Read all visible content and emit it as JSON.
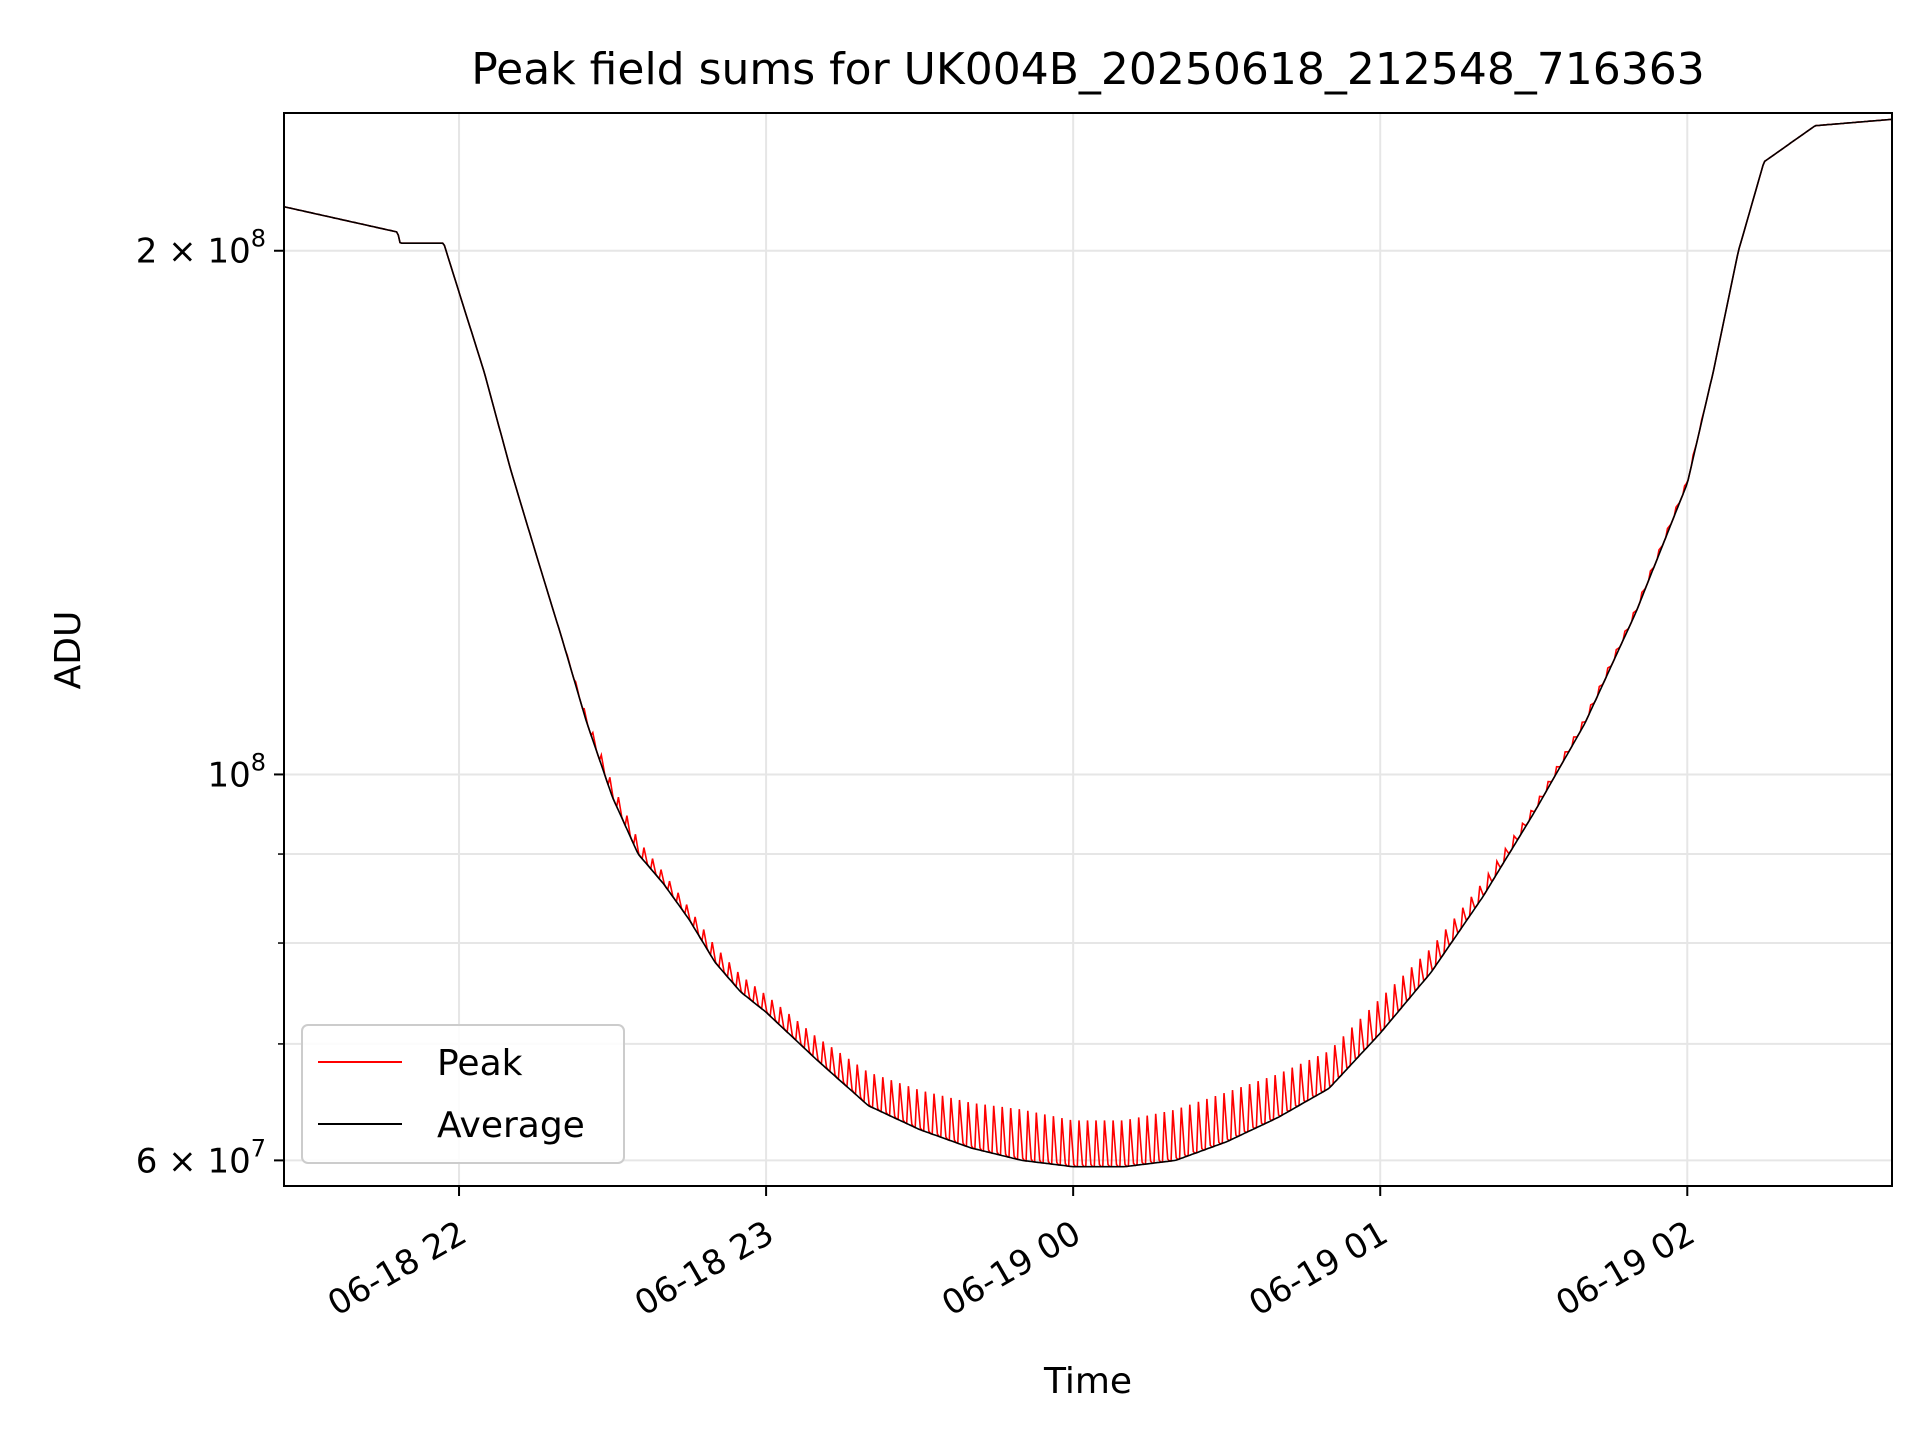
{
  "chart_data": {
    "type": "line",
    "title": "Peak field sums for UK004B_20250618_212548_716363",
    "xlabel": "Time",
    "ylabel": "ADU",
    "xscale": "time",
    "yscale": "log",
    "xlim": [
      "2025-06-18 21:25:48",
      "2025-06-19 02:40:00"
    ],
    "ylim": [
      58000000,
      240000000
    ],
    "x_ticks": [
      {
        "value": "2025-06-18 22:00",
        "label": "06-18 22"
      },
      {
        "value": "2025-06-18 23:00",
        "label": "06-18 23"
      },
      {
        "value": "2025-06-19 00:00",
        "label": "06-19 00"
      },
      {
        "value": "2025-06-19 01:00",
        "label": "06-19 01"
      },
      {
        "value": "2025-06-19 02:00",
        "label": "06-19 02"
      }
    ],
    "y_ticks": [
      {
        "value": 60000000,
        "base": "6 × 10",
        "exp": "7"
      },
      {
        "value": 100000000,
        "base": "10",
        "exp": "8"
      },
      {
        "value": 200000000,
        "base": "2 × 10",
        "exp": "8"
      }
    ],
    "y_minor_ticks": [
      70000000,
      80000000,
      90000000
    ],
    "grid": true,
    "legend": "lower-left",
    "series": [
      {
        "name": "Peak",
        "color": "#ff0000",
        "x": [
          "2025-06-18 21:25:48",
          "2025-06-18 21:48:00",
          "2025-06-18 21:48:30",
          "2025-06-18 21:57:00",
          "2025-06-18 22:05:00",
          "2025-06-18 22:10:00",
          "2025-06-18 22:15:00",
          "2025-06-18 22:20:00",
          "2025-06-18 22:25:00",
          "2025-06-18 22:30:00",
          "2025-06-18 22:35:00",
          "2025-06-18 22:40:00",
          "2025-06-18 22:45:00",
          "2025-06-18 22:50:00",
          "2025-06-18 22:55:00",
          "2025-06-18 23:00:00",
          "2025-06-18 23:10:00",
          "2025-06-18 23:20:00",
          "2025-06-18 23:30:00",
          "2025-06-18 23:40:00",
          "2025-06-18 23:50:00",
          "2025-06-19 00:00:00",
          "2025-06-19 00:10:00",
          "2025-06-19 00:20:00",
          "2025-06-19 00:30:00",
          "2025-06-19 00:40:00",
          "2025-06-19 00:50:00",
          "2025-06-19 01:00:00",
          "2025-06-19 01:10:00",
          "2025-06-19 01:20:00",
          "2025-06-19 01:30:00",
          "2025-06-19 01:40:00",
          "2025-06-19 01:50:00",
          "2025-06-19 02:00:00",
          "2025-06-19 02:05:00",
          "2025-06-19 02:10:00",
          "2025-06-19 02:15:00",
          "2025-06-19 02:25:00",
          "2025-06-19 02:40:00"
        ],
        "y": [
          212000000,
          205000000,
          202000000,
          202000000,
          170000000,
          150000000,
          134000000,
          120000000,
          108000000,
          99000000,
          92000000,
          88000000,
          84000000,
          80000000,
          77000000,
          75000000,
          71000000,
          68000000,
          66500000,
          65500000,
          65000000,
          64000000,
          64000000,
          65000000,
          66500000,
          68000000,
          70000000,
          75000000,
          80000000,
          87000000,
          96000000,
          108000000,
          125000000,
          148000000,
          170000000,
          200000000,
          225000000,
          236000000,
          238000000
        ],
        "oscillation": true
      },
      {
        "name": "Average",
        "color": "#000000",
        "x": [
          "2025-06-18 21:25:48",
          "2025-06-18 21:48:00",
          "2025-06-18 21:48:30",
          "2025-06-18 21:57:00",
          "2025-06-18 22:05:00",
          "2025-06-18 22:10:00",
          "2025-06-18 22:15:00",
          "2025-06-18 22:20:00",
          "2025-06-18 22:25:00",
          "2025-06-18 22:30:00",
          "2025-06-18 22:35:00",
          "2025-06-18 22:40:00",
          "2025-06-18 22:45:00",
          "2025-06-18 22:50:00",
          "2025-06-18 22:55:00",
          "2025-06-18 23:00:00",
          "2025-06-18 23:10:00",
          "2025-06-18 23:20:00",
          "2025-06-18 23:30:00",
          "2025-06-18 23:40:00",
          "2025-06-18 23:50:00",
          "2025-06-19 00:00:00",
          "2025-06-19 00:10:00",
          "2025-06-19 00:20:00",
          "2025-06-19 00:30:00",
          "2025-06-19 00:40:00",
          "2025-06-19 00:50:00",
          "2025-06-19 01:00:00",
          "2025-06-19 01:10:00",
          "2025-06-19 01:20:00",
          "2025-06-19 01:30:00",
          "2025-06-19 01:40:00",
          "2025-06-19 01:50:00",
          "2025-06-19 02:00:00",
          "2025-06-19 02:05:00",
          "2025-06-19 02:10:00",
          "2025-06-19 02:15:00",
          "2025-06-19 02:25:00",
          "2025-06-19 02:40:00"
        ],
        "y": [
          212000000,
          205000000,
          202000000,
          202000000,
          170000000,
          150000000,
          134000000,
          120000000,
          107000000,
          97000000,
          90000000,
          86500000,
          82500000,
          78000000,
          75000000,
          73000000,
          68500000,
          64500000,
          62500000,
          61000000,
          60000000,
          59500000,
          59500000,
          60000000,
          61500000,
          63500000,
          66000000,
          71000000,
          77000000,
          85000000,
          95000000,
          107000000,
          124000000,
          147000000,
          170000000,
          200000000,
          225000000,
          236000000,
          238000000
        ],
        "oscillation": false
      }
    ]
  }
}
